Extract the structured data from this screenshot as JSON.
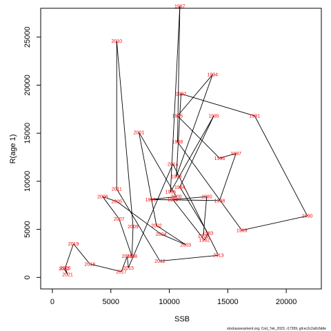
{
  "chart_data": {
    "type": "line",
    "title": "",
    "xlabel": "SSB",
    "ylabel": "R(age 1)",
    "xlim": [
      -1000,
      23000
    ],
    "ylim": [
      -1200,
      28000
    ],
    "x_ticks": [
      0,
      5000,
      10000,
      15000,
      20000
    ],
    "y_ticks": [
      0,
      5000,
      10000,
      15000,
      20000,
      25000
    ],
    "x_tick_labels": [
      "0",
      "5000",
      "10000",
      "15000",
      "20000"
    ],
    "y_tick_labels": [
      "0",
      "5000",
      "10000",
      "15000",
      "20000",
      "25000"
    ],
    "grid": false,
    "colors": {
      "line": "#000000",
      "labels": "#ff0000",
      "axes": "#000000"
    },
    "points": [
      {
        "year": "1979",
        "x": 12900,
        "y": 4300
      },
      {
        "year": "1980",
        "x": 13200,
        "y": 8400
      },
      {
        "year": "1981",
        "x": 10300,
        "y": 8100
      },
      {
        "year": "1982",
        "x": 13000,
        "y": 3900
      },
      {
        "year": "1983",
        "x": 13300,
        "y": 4600
      },
      {
        "year": "1984",
        "x": 10900,
        "y": 9400
      },
      {
        "year": "1985",
        "x": 13800,
        "y": 16800
      },
      {
        "year": "1986",
        "x": 10100,
        "y": 8900
      },
      {
        "year": "1987",
        "x": 10900,
        "y": 28200
      },
      {
        "year": "1988",
        "x": 10700,
        "y": 14100
      },
      {
        "year": "1989",
        "x": 16200,
        "y": 4900
      },
      {
        "year": "1990",
        "x": 21800,
        "y": 6400
      },
      {
        "year": "1991",
        "x": 17300,
        "y": 16800
      },
      {
        "year": "1992",
        "x": 11000,
        "y": 19100
      },
      {
        "year": "1993",
        "x": 10600,
        "y": 10500
      },
      {
        "year": "1994",
        "x": 13700,
        "y": 21100
      },
      {
        "year": "1995",
        "x": 10700,
        "y": 16800
      },
      {
        "year": "1996",
        "x": 14300,
        "y": 12400
      },
      {
        "year": "1997",
        "x": 15700,
        "y": 12900
      },
      {
        "year": "1998",
        "x": 14300,
        "y": 8000
      },
      {
        "year": "1999",
        "x": 8400,
        "y": 8100
      },
      {
        "year": "2000",
        "x": 10600,
        "y": 8400
      },
      {
        "year": "2001",
        "x": 7400,
        "y": 15100
      },
      {
        "year": "2002",
        "x": 8900,
        "y": 5400
      },
      {
        "year": "2003",
        "x": 11400,
        "y": 3400
      },
      {
        "year": "2004",
        "x": 9300,
        "y": 4500
      },
      {
        "year": "2005",
        "x": 5500,
        "y": 7900
      },
      {
        "year": "2006",
        "x": 4300,
        "y": 8400
      },
      {
        "year": "2007",
        "x": 5700,
        "y": 6100
      },
      {
        "year": "2008",
        "x": 6800,
        "y": 2200
      },
      {
        "year": "2009",
        "x": 6900,
        "y": 5300
      },
      {
        "year": "2010",
        "x": 5500,
        "y": 24600
      },
      {
        "year": "2011",
        "x": 5500,
        "y": 9200
      },
      {
        "year": "2012",
        "x": 9200,
        "y": 1700
      },
      {
        "year": "2013",
        "x": 14200,
        "y": 2300
      },
      {
        "year": "2014",
        "x": 10300,
        "y": 11800
      },
      {
        "year": "2015",
        "x": 6500,
        "y": 1000
      },
      {
        "year": "2016",
        "x": 6400,
        "y": 2200
      },
      {
        "year": "2017",
        "x": 5900,
        "y": 600
      },
      {
        "year": "2018",
        "x": 3200,
        "y": 1400
      },
      {
        "year": "2019",
        "x": 1800,
        "y": 3500
      },
      {
        "year": "2020",
        "x": 1100,
        "y": 1000
      },
      {
        "year": "2021",
        "x": 1300,
        "y": 300
      },
      {
        "year": "2022",
        "x": 1000,
        "y": 900
      }
    ]
  },
  "footnote": "stockassessment.org, Cod_7ek_2023, r17359, git:ec2c2a0c6dde"
}
